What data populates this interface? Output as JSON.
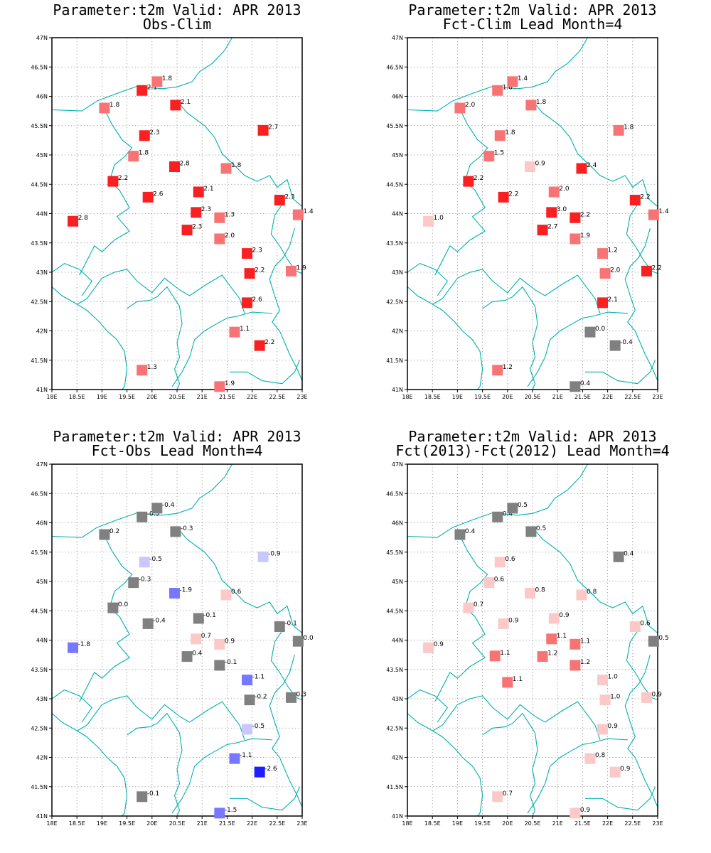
{
  "map": {
    "lon_labels": [
      "18E",
      "18.5E",
      "19E",
      "19.5E",
      "20E",
      "20.5E",
      "21E",
      "21.5E",
      "22E",
      "22.5E",
      "23E"
    ],
    "lat_labels": [
      "41N",
      "41.5N",
      "42N",
      "42.5N",
      "43N",
      "43.5N",
      "44N",
      "44.5N",
      "45N",
      "45.5N",
      "46N",
      "46.5N",
      "47N"
    ],
    "lon_range": [
      18,
      23
    ],
    "lat_range": [
      41,
      47
    ],
    "grid": "dotted",
    "boundary_color": "#00b0b0",
    "marker": "filled-square",
    "palette": {
      "neg_strong": "#1e1eff",
      "neg_mid": "#7777ff",
      "neg_light": "#c8c8ff",
      "neutral": "#808080",
      "pos_light": "#fcc8c8",
      "pos_mid": "#f87474",
      "pos_strong": "#f82020"
    }
  },
  "panels": [
    {
      "title1": "Parameter:t2m Valid: APR 2013",
      "title2": "Obs-Clim",
      "stations": [
        {
          "lon": 18.42,
          "lat": 43.87,
          "label": "2.8",
          "value": 2.8
        },
        {
          "lon": 19.05,
          "lat": 45.8,
          "label": "1.8",
          "value": 1.8
        },
        {
          "lon": 19.22,
          "lat": 44.55,
          "label": "2.2",
          "value": 2.2
        },
        {
          "lon": 19.63,
          "lat": 44.98,
          "label": "1.8",
          "value": 1.8
        },
        {
          "lon": 19.8,
          "lat": 46.1,
          "label": "2.1",
          "value": 2.1
        },
        {
          "lon": 19.85,
          "lat": 45.33,
          "label": "2.3",
          "value": 2.3
        },
        {
          "lon": 19.92,
          "lat": 44.28,
          "label": "2.6",
          "value": 2.6
        },
        {
          "lon": 19.8,
          "lat": 41.33,
          "label": "1.3",
          "value": 1.3
        },
        {
          "lon": 20.1,
          "lat": 46.25,
          "label": "1.8",
          "value": 1.8
        },
        {
          "lon": 20.47,
          "lat": 45.85,
          "label": "2.1",
          "value": 2.1
        },
        {
          "lon": 20.45,
          "lat": 44.8,
          "label": "2.8",
          "value": 2.8
        },
        {
          "lon": 20.7,
          "lat": 43.72,
          "label": "2.3",
          "value": 2.3
        },
        {
          "lon": 20.88,
          "lat": 44.02,
          "label": "2.3",
          "value": 2.3
        },
        {
          "lon": 20.93,
          "lat": 44.37,
          "label": "2.1",
          "value": 2.1
        },
        {
          "lon": 21.35,
          "lat": 43.93,
          "label": "1.3",
          "value": 1.3
        },
        {
          "lon": 21.35,
          "lat": 43.57,
          "label": "2.0",
          "value": 2.0
        },
        {
          "lon": 21.35,
          "lat": 41.05,
          "label": "1.9",
          "value": 1.9
        },
        {
          "lon": 21.48,
          "lat": 44.77,
          "label": "1.8",
          "value": 1.8
        },
        {
          "lon": 21.65,
          "lat": 41.98,
          "label": "1.1",
          "value": 1.1
        },
        {
          "lon": 21.9,
          "lat": 43.32,
          "label": "2.3",
          "value": 2.3
        },
        {
          "lon": 21.9,
          "lat": 42.48,
          "label": "2.6",
          "value": 2.6
        },
        {
          "lon": 21.95,
          "lat": 42.98,
          "label": "2.2",
          "value": 2.2
        },
        {
          "lon": 22.15,
          "lat": 41.75,
          "label": "2.2",
          "value": 2.2
        },
        {
          "lon": 22.22,
          "lat": 45.42,
          "label": "2.7",
          "value": 2.7
        },
        {
          "lon": 22.55,
          "lat": 44.23,
          "label": "2.3",
          "value": 2.3
        },
        {
          "lon": 22.78,
          "lat": 43.02,
          "label": "1.9",
          "value": 1.9
        },
        {
          "lon": 22.92,
          "lat": 43.98,
          "label": "1.4",
          "value": 1.4
        }
      ]
    },
    {
      "title1": "Parameter:t2m Valid: APR 2013",
      "title2": "Fct-Clim Lead Month=4",
      "stations": [
        {
          "lon": 18.42,
          "lat": 43.87,
          "label": "1.0",
          "value": 1.0
        },
        {
          "lon": 19.05,
          "lat": 45.8,
          "label": "2.0",
          "value": 2.0
        },
        {
          "lon": 19.22,
          "lat": 44.55,
          "label": "2.2",
          "value": 2.2
        },
        {
          "lon": 19.63,
          "lat": 44.98,
          "label": "1.5",
          "value": 1.5
        },
        {
          "lon": 19.8,
          "lat": 46.1,
          "label": "1.8",
          "value": 1.8
        },
        {
          "lon": 19.85,
          "lat": 45.33,
          "label": "1.8",
          "value": 1.8
        },
        {
          "lon": 19.92,
          "lat": 44.28,
          "label": "2.2",
          "value": 2.2
        },
        {
          "lon": 19.8,
          "lat": 41.33,
          "label": "1.2",
          "value": 1.2
        },
        {
          "lon": 20.1,
          "lat": 46.25,
          "label": "1.4",
          "value": 1.4
        },
        {
          "lon": 20.47,
          "lat": 45.85,
          "label": "1.8",
          "value": 1.8
        },
        {
          "lon": 20.45,
          "lat": 44.8,
          "label": "0.9",
          "value": 0.9
        },
        {
          "lon": 20.7,
          "lat": 43.72,
          "label": "2.7",
          "value": 2.7
        },
        {
          "lon": 20.88,
          "lat": 44.02,
          "label": "3.0",
          "value": 3.0
        },
        {
          "lon": 20.93,
          "lat": 44.37,
          "label": "2.0",
          "value": 2.0
        },
        {
          "lon": 21.35,
          "lat": 43.93,
          "label": "2.2",
          "value": 2.2
        },
        {
          "lon": 21.35,
          "lat": 43.57,
          "label": "1.9",
          "value": 1.9
        },
        {
          "lon": 21.35,
          "lat": 41.05,
          "label": "0.4",
          "value": 0.4
        },
        {
          "lon": 21.48,
          "lat": 44.77,
          "label": "2.4",
          "value": 2.4
        },
        {
          "lon": 21.65,
          "lat": 41.98,
          "label": "0.0",
          "value": 0.0
        },
        {
          "lon": 21.9,
          "lat": 43.32,
          "label": "1.2",
          "value": 1.2
        },
        {
          "lon": 21.9,
          "lat": 42.48,
          "label": "2.1",
          "value": 2.1
        },
        {
          "lon": 21.95,
          "lat": 42.98,
          "label": "2.0",
          "value": 2.0
        },
        {
          "lon": 22.15,
          "lat": 41.75,
          "label": "-0.4",
          "value": -0.4
        },
        {
          "lon": 22.22,
          "lat": 45.42,
          "label": "1.8",
          "value": 1.8
        },
        {
          "lon": 22.55,
          "lat": 44.23,
          "label": "2.2",
          "value": 2.2
        },
        {
          "lon": 22.78,
          "lat": 43.02,
          "label": "2.2",
          "value": 2.2
        },
        {
          "lon": 22.92,
          "lat": 43.98,
          "label": "1.4",
          "value": 1.4
        }
      ]
    },
    {
      "title1": "Parameter:t2m Valid: APR 2013",
      "title2": "Fct-Obs Lead Month=4",
      "stations": [
        {
          "lon": 18.42,
          "lat": 43.87,
          "label": "-1.8",
          "value": -1.8
        },
        {
          "lon": 19.05,
          "lat": 45.8,
          "label": "0.2",
          "value": 0.2
        },
        {
          "lon": 19.22,
          "lat": 44.55,
          "label": "0.0",
          "value": 0.0
        },
        {
          "lon": 19.63,
          "lat": 44.98,
          "label": "-0.3",
          "value": -0.3
        },
        {
          "lon": 19.8,
          "lat": 46.1,
          "label": "-0.3",
          "value": -0.3
        },
        {
          "lon": 19.85,
          "lat": 45.33,
          "label": "-0.5",
          "value": -0.5
        },
        {
          "lon": 19.92,
          "lat": 44.28,
          "label": "-0.4",
          "value": -0.4
        },
        {
          "lon": 19.8,
          "lat": 41.33,
          "label": "-0.1",
          "value": -0.1
        },
        {
          "lon": 20.1,
          "lat": 46.25,
          "label": "-0.4",
          "value": -0.4
        },
        {
          "lon": 20.47,
          "lat": 45.85,
          "label": "-0.3",
          "value": -0.3
        },
        {
          "lon": 20.45,
          "lat": 44.8,
          "label": "-1.9",
          "value": -1.9
        },
        {
          "lon": 20.7,
          "lat": 43.72,
          "label": "0.4",
          "value": 0.4
        },
        {
          "lon": 20.88,
          "lat": 44.02,
          "label": "0.7",
          "value": 0.7
        },
        {
          "lon": 20.93,
          "lat": 44.37,
          "label": "-0.1",
          "value": -0.1
        },
        {
          "lon": 21.35,
          "lat": 43.93,
          "label": "0.9",
          "value": 0.9
        },
        {
          "lon": 21.35,
          "lat": 43.57,
          "label": "-0.1",
          "value": -0.1
        },
        {
          "lon": 21.35,
          "lat": 41.05,
          "label": "-1.5",
          "value": -1.5
        },
        {
          "lon": 21.48,
          "lat": 44.77,
          "label": "0.6",
          "value": 0.6
        },
        {
          "lon": 21.65,
          "lat": 41.98,
          "label": "-1.1",
          "value": -1.1
        },
        {
          "lon": 21.9,
          "lat": 43.32,
          "label": "-1.1",
          "value": -1.1
        },
        {
          "lon": 21.9,
          "lat": 42.48,
          "label": "-0.5",
          "value": -0.5
        },
        {
          "lon": 21.95,
          "lat": 42.98,
          "label": "-0.2",
          "value": -0.2
        },
        {
          "lon": 22.15,
          "lat": 41.75,
          "label": "-2.6",
          "value": -2.6
        },
        {
          "lon": 22.22,
          "lat": 45.42,
          "label": "-0.9",
          "value": -0.9
        },
        {
          "lon": 22.55,
          "lat": 44.23,
          "label": "-0.1",
          "value": -0.1
        },
        {
          "lon": 22.78,
          "lat": 43.02,
          "label": "0.3",
          "value": 0.3
        },
        {
          "lon": 22.92,
          "lat": 43.98,
          "label": "0.0",
          "value": 0.0
        }
      ]
    },
    {
      "title1": "Parameter:t2m Valid: APR 2013",
      "title2": "Fct(2013)-Fct(2012) Lead Month=4",
      "stations": [
        {
          "lon": 18.42,
          "lat": 43.87,
          "label": "0.9",
          "value": 0.9
        },
        {
          "lon": 19.05,
          "lat": 45.8,
          "label": "0.4",
          "value": 0.4
        },
        {
          "lon": 19.22,
          "lat": 44.55,
          "label": "0.7",
          "value": 0.7
        },
        {
          "lon": 19.63,
          "lat": 44.98,
          "label": "0.6",
          "value": 0.6
        },
        {
          "lon": 19.8,
          "lat": 46.1,
          "label": "0.4",
          "value": 0.4
        },
        {
          "lon": 19.85,
          "lat": 45.33,
          "label": "0.6",
          "value": 0.6
        },
        {
          "lon": 19.92,
          "lat": 44.28,
          "label": "0.9",
          "value": 0.9
        },
        {
          "lon": 19.8,
          "lat": 41.33,
          "label": "0.7",
          "value": 0.7
        },
        {
          "lon": 20.1,
          "lat": 46.25,
          "label": "0.5",
          "value": 0.5
        },
        {
          "lon": 20.47,
          "lat": 45.85,
          "label": "0.5",
          "value": 0.5
        },
        {
          "lon": 20.45,
          "lat": 44.8,
          "label": "0.8",
          "value": 0.8
        },
        {
          "lon": 20.7,
          "lat": 43.72,
          "label": "1.2",
          "value": 1.2
        },
        {
          "lon": 20.88,
          "lat": 44.02,
          "label": "1.1",
          "value": 1.1
        },
        {
          "lon": 20.93,
          "lat": 44.37,
          "label": "0.9",
          "value": 0.9
        },
        {
          "lon": 21.35,
          "lat": 43.93,
          "label": "1.1",
          "value": 1.1
        },
        {
          "lon": 21.35,
          "lat": 43.57,
          "label": "1.2",
          "value": 1.2
        },
        {
          "lon": 21.35,
          "lat": 41.05,
          "label": "0.9",
          "value": 0.9
        },
        {
          "lon": 21.48,
          "lat": 44.77,
          "label": "0.8",
          "value": 0.8
        },
        {
          "lon": 21.65,
          "lat": 41.98,
          "label": "0.8",
          "value": 0.8
        },
        {
          "lon": 21.9,
          "lat": 43.32,
          "label": "1.0",
          "value": 1.0
        },
        {
          "lon": 21.9,
          "lat": 42.48,
          "label": "0.9",
          "value": 0.9
        },
        {
          "lon": 21.95,
          "lat": 42.98,
          "label": "1.0",
          "value": 1.0
        },
        {
          "lon": 22.15,
          "lat": 41.75,
          "label": "0.9",
          "value": 0.9
        },
        {
          "lon": 22.22,
          "lat": 45.42,
          "label": "0.4",
          "value": 0.4
        },
        {
          "lon": 22.55,
          "lat": 44.23,
          "label": "0.6",
          "value": 0.6
        },
        {
          "lon": 22.78,
          "lat": 43.02,
          "label": "0.9",
          "value": 0.9
        },
        {
          "lon": 22.92,
          "lat": 43.98,
          "label": "0.5",
          "value": 0.5
        },
        {
          "lon": 19.75,
          "lat": 43.73,
          "label": "1.1",
          "value": 1.1
        },
        {
          "lon": 20.0,
          "lat": 43.28,
          "label": "1.1",
          "value": 1.1
        }
      ]
    }
  ]
}
